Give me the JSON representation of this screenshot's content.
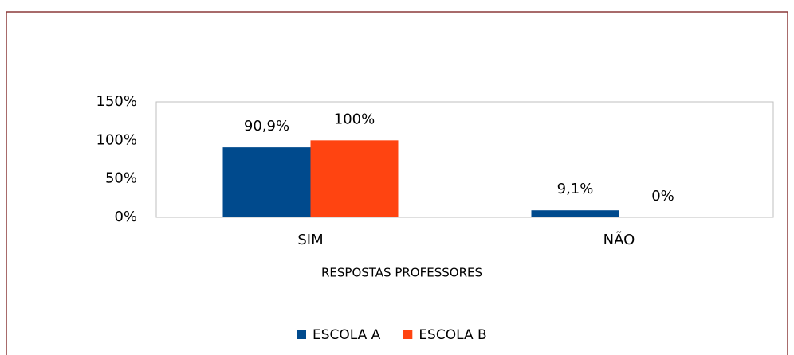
{
  "chart_data": {
    "type": "bar",
    "categories": [
      "SIM",
      "NÃO"
    ],
    "series": [
      {
        "name": "ESCOLA A",
        "color": "#004a8d",
        "values": [
          90.9,
          9.1
        ],
        "value_labels": [
          "90,9%",
          "9,1%"
        ]
      },
      {
        "name": "ESCOLA B",
        "color": "#ff4411",
        "values": [
          100,
          0
        ],
        "value_labels": [
          "100%",
          "0%"
        ]
      }
    ],
    "x_label": "RESPOSTAS PROFESSORES",
    "ylim": [
      0,
      150
    ],
    "yticks": [
      {
        "value": 0,
        "label": "0%"
      },
      {
        "value": 50,
        "label": "50%"
      },
      {
        "value": 100,
        "label": "100%"
      },
      {
        "value": 150,
        "label": "150%"
      }
    ],
    "grid": false,
    "legend": "bottom"
  }
}
